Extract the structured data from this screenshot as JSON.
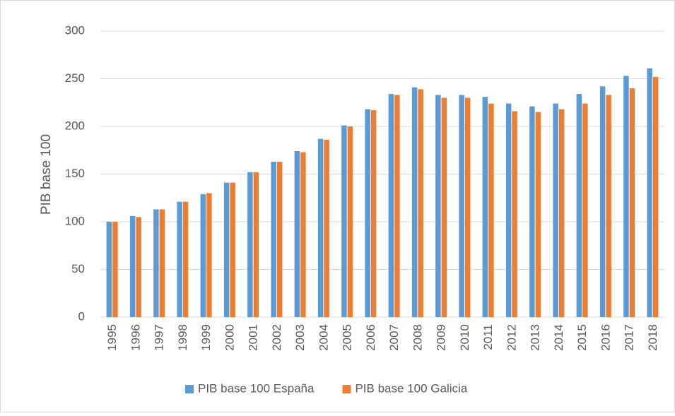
{
  "chart_data": {
    "type": "bar",
    "y_label": "PIB base 100",
    "categories": [
      "1995",
      "1996",
      "1997",
      "1998",
      "1999",
      "2000",
      "2001",
      "2002",
      "2003",
      "2004",
      "2005",
      "2006",
      "2007",
      "2008",
      "2009",
      "2010",
      "2011",
      "2012",
      "2013",
      "2014",
      "2015",
      "2016",
      "2017",
      "2018"
    ],
    "series": [
      {
        "name": "PIB base 100 España",
        "color": "#5b9bd5",
        "values": [
          100,
          106,
          113,
          121,
          129,
          141,
          152,
          163,
          174,
          187,
          201,
          218,
          234,
          241,
          233,
          233,
          231,
          224,
          221,
          224,
          234,
          242,
          253,
          261
        ]
      },
      {
        "name": "PIB base 100 Galicia",
        "color": "#ed7d31",
        "values": [
          100,
          105,
          113,
          121,
          130,
          141,
          152,
          163,
          173,
          186,
          200,
          217,
          233,
          239,
          230,
          230,
          224,
          216,
          215,
          218,
          224,
          233,
          240,
          252
        ]
      }
    ],
    "ylim": [
      0,
      300
    ],
    "yticks": [
      0,
      50,
      100,
      150,
      200,
      250,
      300
    ],
    "grid": true,
    "legend": "bottom"
  }
}
